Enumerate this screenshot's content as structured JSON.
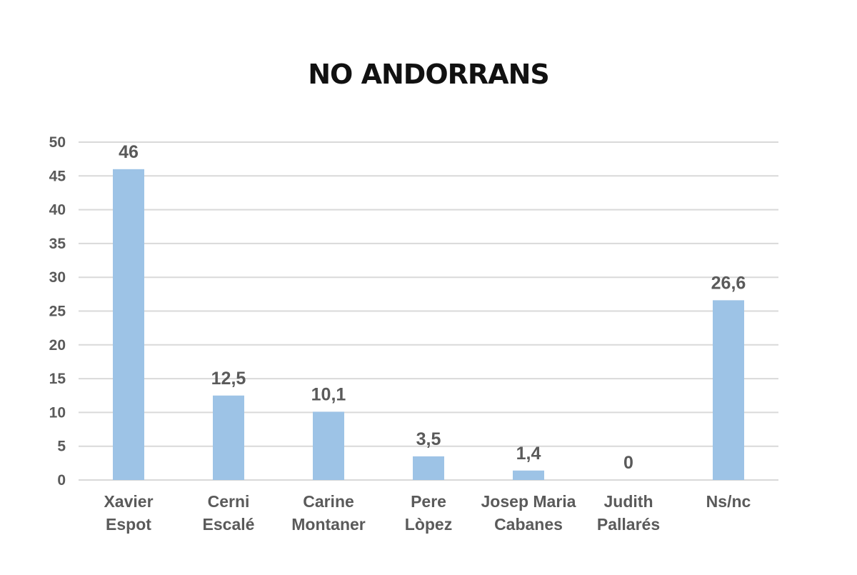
{
  "chart_data": {
    "type": "bar",
    "title": "NO ANDORRANS",
    "categories": [
      [
        "Xavier",
        "Espot"
      ],
      [
        "Cerni",
        "Escalé"
      ],
      [
        "Carine",
        "Montaner"
      ],
      [
        "Pere",
        "Lòpez"
      ],
      [
        "Josep Maria",
        "Cabanes"
      ],
      [
        "Judith",
        "Pallarés"
      ],
      [
        "Ns/nc"
      ]
    ],
    "values": [
      46,
      12.5,
      10.1,
      3.5,
      1.4,
      0,
      26.6
    ],
    "data_labels": [
      "46",
      "12,5",
      "10,1",
      "3,5",
      "1,4",
      "0",
      "26,6"
    ],
    "ylim": [
      0,
      50
    ],
    "yticks": [
      0,
      5,
      10,
      15,
      20,
      25,
      30,
      35,
      40,
      45,
      50
    ],
    "grid": true,
    "bar_color": "#9dc3e6",
    "text_color": "#5a5a5a"
  }
}
